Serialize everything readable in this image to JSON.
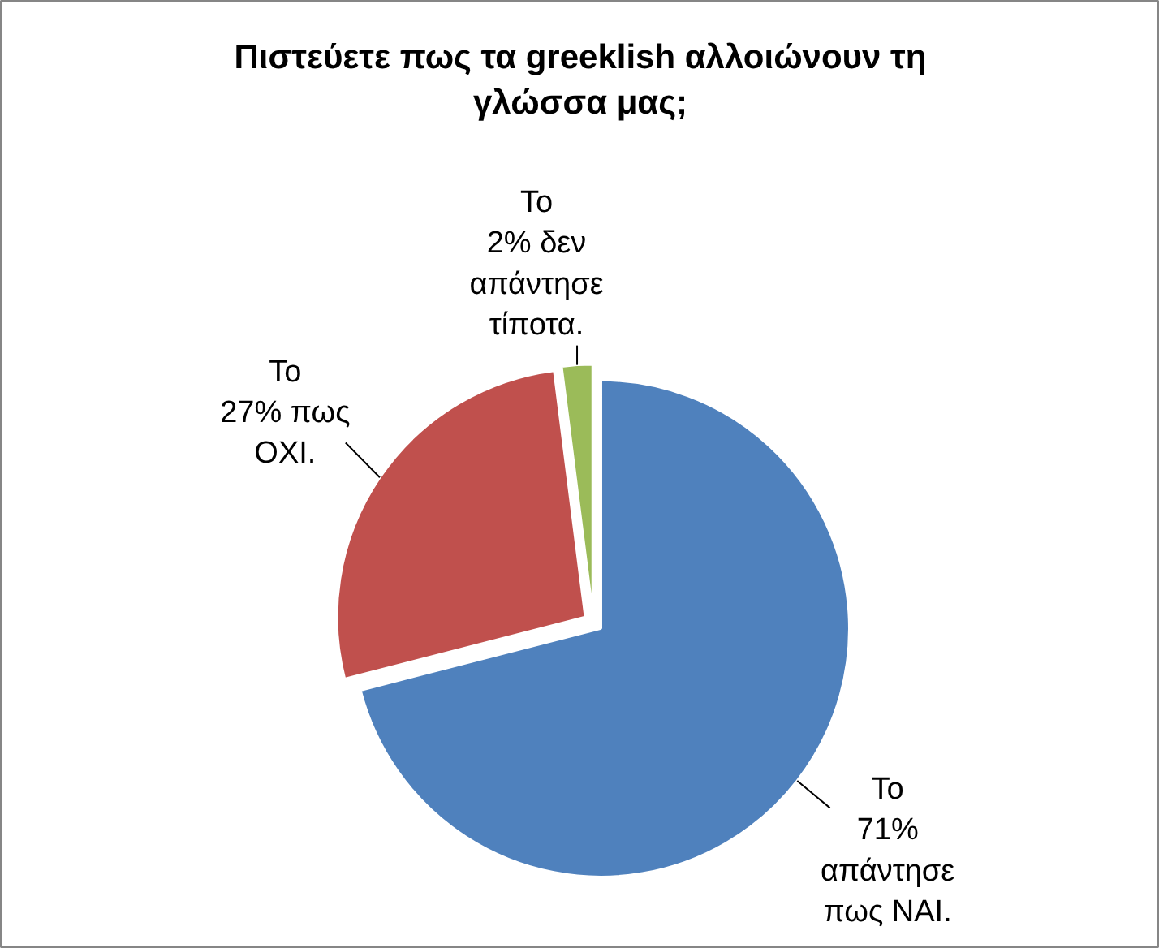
{
  "chart_data": {
    "type": "pie",
    "title": "Πιστεύετε πως τα greeklish αλλοιώνουν τη γλώσσα μας;",
    "categories": [
      null,
      null,
      null
    ],
    "values": [
      71,
      27,
      2
    ],
    "colors": [
      "#4f81bd",
      "#c0504d",
      "#9bbb59"
    ],
    "value_labels": [
      "Το\n71%\nαπάντησε\nπως ΝΑΙ.",
      "Το\n27% πως\nΟΧΙ.",
      "Το\n2% δεν\nαπάντησε\nτίποτα."
    ]
  }
}
